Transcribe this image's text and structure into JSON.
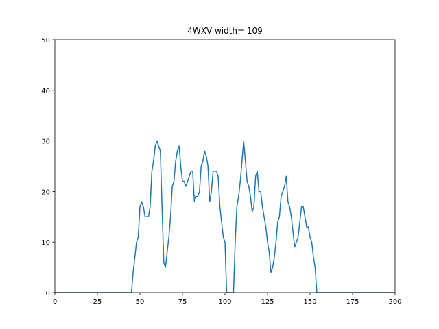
{
  "chart_data": {
    "type": "line",
    "title": "4WXV width= 109",
    "x": [
      0,
      45,
      46,
      47,
      48,
      49,
      50,
      51,
      52,
      53,
      54,
      55,
      56,
      57,
      58,
      59,
      60,
      61,
      62,
      63,
      64,
      65,
      66,
      67,
      68,
      69,
      70,
      71,
      72,
      73,
      74,
      75,
      76,
      77,
      78,
      79,
      80,
      81,
      82,
      83,
      84,
      85,
      86,
      87,
      88,
      89,
      90,
      91,
      92,
      93,
      94,
      95,
      96,
      97,
      98,
      99,
      100,
      101,
      102,
      103,
      104,
      105,
      106,
      107,
      108,
      109,
      110,
      111,
      112,
      113,
      114,
      115,
      116,
      117,
      118,
      119,
      120,
      121,
      122,
      123,
      124,
      125,
      126,
      127,
      128,
      129,
      130,
      131,
      132,
      133,
      134,
      135,
      136,
      137,
      138,
      139,
      140,
      141,
      142,
      143,
      144,
      145,
      146,
      147,
      148,
      149,
      150,
      151,
      152,
      153,
      154,
      200
    ],
    "series": [
      {
        "color": "#1f77b4",
        "values": [
          0,
          0,
          4,
          7,
          10,
          11,
          17,
          18,
          17,
          15,
          15,
          15,
          17,
          24,
          26,
          29,
          30,
          29,
          28,
          17,
          6,
          5,
          8,
          11,
          15,
          21,
          22,
          26,
          28,
          29,
          25,
          22,
          22,
          21,
          22,
          23,
          24,
          24,
          18,
          19,
          19,
          20,
          25,
          26,
          28,
          27,
          25,
          18,
          20,
          24,
          24,
          24,
          23,
          17,
          14,
          11,
          10,
          0,
          0,
          0,
          0,
          0,
          10,
          17,
          19,
          22,
          26,
          30,
          26,
          22,
          21,
          19,
          16,
          17,
          23,
          24,
          20,
          20,
          17,
          15,
          13,
          10,
          8,
          4,
          5,
          7,
          10,
          14,
          15,
          19,
          20,
          21,
          23,
          18,
          17,
          15,
          12,
          9,
          10,
          11,
          14,
          17,
          17,
          15,
          13,
          13,
          11,
          10,
          7,
          5,
          0,
          0
        ]
      }
    ],
    "xlim": [
      0,
      200
    ],
    "ylim": [
      0,
      50
    ],
    "xticks": [
      0,
      25,
      50,
      75,
      100,
      125,
      150,
      175,
      200
    ],
    "yticks": [
      0,
      10,
      20,
      30,
      40,
      50
    ]
  }
}
